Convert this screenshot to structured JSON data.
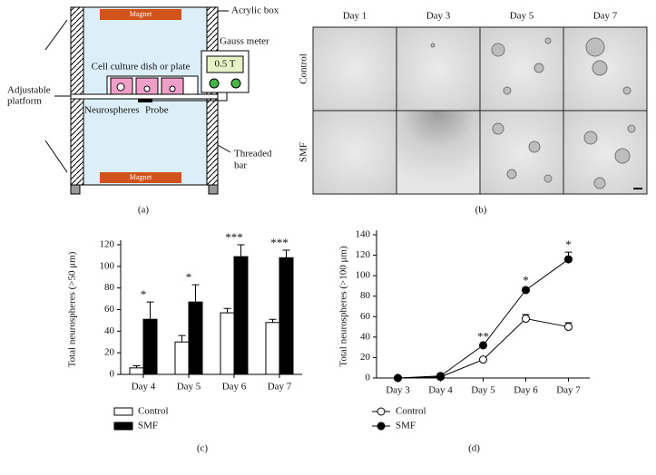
{
  "panel_a": {
    "caption": "(a)",
    "magnet_top": "Magnet",
    "magnet_bottom": "Magnet",
    "acrylic_box": "Acrylic box",
    "gauss_meter": "Gauss meter",
    "reading": "0.5 T",
    "dish": "Cell culture dish or plate",
    "platform": [
      "Adjustable",
      "platform"
    ],
    "neurospheres": "Neurospheres",
    "probe": "Probe",
    "threaded_bar": [
      "Threaded",
      "bar"
    ]
  },
  "panel_b": {
    "caption": "(b)",
    "columns": [
      "Day 1",
      "Day 3",
      "Day 5",
      "Day 7"
    ],
    "rows": [
      "Control",
      "SMF"
    ]
  },
  "chart_data": [
    {
      "type": "bar",
      "caption": "(c)",
      "y_label": "Total neurospheres (>50 μm)",
      "categories": [
        "Day 4",
        "Day 5",
        "Day 6",
        "Day 7"
      ],
      "series": [
        {
          "name": "Control",
          "color": "#ffffff",
          "values": [
            6,
            30,
            57,
            48
          ],
          "errors": [
            2,
            6,
            4,
            3
          ]
        },
        {
          "name": "SMF",
          "color": "#000000",
          "values": [
            51,
            67,
            109,
            108
          ],
          "errors": [
            16,
            16,
            11,
            7
          ]
        }
      ],
      "annotations": [
        "*",
        "*",
        "***",
        "***"
      ],
      "ylim": [
        0,
        120
      ],
      "yticks": [
        0,
        20,
        40,
        60,
        80,
        100,
        120
      ]
    },
    {
      "type": "line",
      "caption": "(d)",
      "y_label": "Total neurospheres (>100 μm)",
      "categories": [
        "Day 3",
        "Day 4",
        "Day 5",
        "Day 6",
        "Day 7"
      ],
      "series": [
        {
          "name": "Control",
          "color": "#ffffff",
          "values": [
            0,
            1,
            18,
            58,
            50
          ],
          "errors": [
            0,
            0,
            1,
            4,
            4
          ]
        },
        {
          "name": "SMF",
          "color": "#000000",
          "values": [
            0,
            2,
            32,
            86,
            116
          ],
          "errors": [
            0,
            0,
            1,
            2,
            7
          ]
        }
      ],
      "annotations": [
        null,
        null,
        "**",
        "*",
        "*"
      ],
      "ylim": [
        0,
        140
      ],
      "yticks": [
        0,
        20,
        40,
        60,
        80,
        100,
        120,
        140
      ]
    }
  ]
}
